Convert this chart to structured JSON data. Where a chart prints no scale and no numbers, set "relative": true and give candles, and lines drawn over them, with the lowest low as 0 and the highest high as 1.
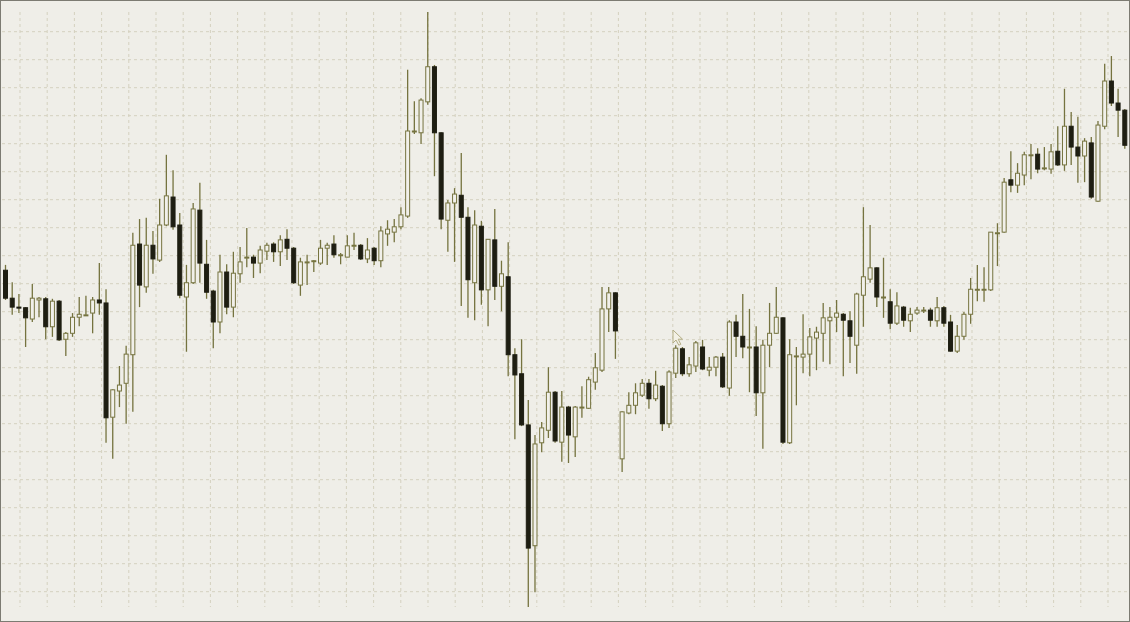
{
  "chart_data": {
    "type": "candlestick",
    "relative": true,
    "grid": true,
    "color": "#75733f",
    "categories": [
      null,
      null,
      null,
      null,
      null,
      null,
      null,
      null,
      null,
      null,
      null,
      null,
      null,
      null,
      null,
      null,
      null,
      null,
      null,
      null,
      null,
      null,
      null,
      null,
      null,
      null,
      null,
      null,
      null,
      null,
      null,
      null,
      null,
      null,
      null,
      null,
      null,
      null,
      null,
      null,
      null,
      null,
      null,
      null,
      null,
      null,
      null,
      null,
      null,
      null,
      null,
      null,
      null,
      null,
      null,
      null,
      null,
      null,
      null,
      null,
      null,
      null,
      null,
      null,
      null,
      null,
      null,
      null,
      null,
      null,
      null,
      null,
      null,
      null,
      null,
      null,
      null,
      null,
      null,
      null,
      null,
      null,
      null,
      null,
      null,
      null,
      null,
      null,
      null,
      null,
      null,
      null,
      null,
      null,
      null,
      null,
      null,
      null,
      null,
      null,
      null,
      null,
      null,
      null,
      null,
      null,
      null,
      null,
      null,
      null,
      null,
      null,
      null,
      null,
      null,
      null,
      null,
      null,
      null,
      null,
      null,
      null,
      null,
      null,
      null,
      null,
      null,
      null,
      null,
      null,
      null,
      null,
      null,
      null,
      null,
      null,
      null,
      null,
      null,
      null,
      null,
      null,
      null,
      null,
      null,
      null,
      null,
      null,
      null,
      null,
      null,
      null,
      null,
      null,
      null,
      null,
      null,
      null,
      null,
      null,
      null,
      null,
      null,
      null,
      null,
      null,
      null,
      null
    ],
    "ohlc": [
      [
        0.566,
        0.575,
        0.516,
        0.519
      ],
      [
        0.519,
        0.546,
        0.491,
        0.504
      ],
      [
        0.504,
        0.526,
        0.494,
        0.503
      ],
      [
        0.503,
        0.504,
        0.437,
        0.486
      ],
      [
        0.484,
        0.543,
        0.479,
        0.519
      ],
      [
        0.516,
        0.521,
        0.487,
        0.519
      ],
      [
        0.518,
        0.521,
        0.45,
        0.471
      ],
      [
        0.471,
        0.518,
        0.454,
        0.514
      ],
      [
        0.514,
        0.516,
        0.447,
        0.449
      ],
      [
        0.45,
        0.462,
        0.422,
        0.46
      ],
      [
        0.46,
        0.494,
        0.454,
        0.487
      ],
      [
        0.487,
        0.521,
        0.472,
        0.492
      ],
      [
        0.491,
        0.523,
        0.489,
        0.491
      ],
      [
        0.494,
        0.521,
        0.46,
        0.516
      ],
      [
        0.516,
        0.578,
        0.491,
        0.511
      ],
      [
        0.511,
        0.534,
        0.276,
        0.318
      ],
      [
        0.319,
        0.366,
        0.249,
        0.365
      ],
      [
        0.363,
        0.405,
        0.336,
        0.373
      ],
      [
        0.376,
        0.439,
        0.308,
        0.425
      ],
      [
        0.424,
        0.629,
        0.328,
        0.608
      ],
      [
        0.61,
        0.652,
        0.504,
        0.541
      ],
      [
        0.538,
        0.654,
        0.528,
        0.608
      ],
      [
        0.608,
        0.632,
        0.56,
        0.585
      ],
      [
        0.583,
        0.686,
        0.58,
        0.642
      ],
      [
        0.642,
        0.76,
        0.64,
        0.691
      ],
      [
        0.689,
        0.734,
        0.634,
        0.639
      ],
      [
        0.642,
        0.662,
        0.519,
        0.524
      ],
      [
        0.521,
        0.575,
        0.429,
        0.545
      ],
      [
        0.545,
        0.679,
        0.543,
        0.669
      ],
      [
        0.667,
        0.713,
        0.545,
        0.578
      ],
      [
        0.576,
        0.617,
        0.518,
        0.529
      ],
      [
        0.531,
        0.533,
        0.435,
        0.479
      ],
      [
        0.479,
        0.592,
        0.46,
        0.563
      ],
      [
        0.563,
        0.576,
        0.492,
        0.504
      ],
      [
        0.504,
        0.597,
        0.487,
        0.561
      ],
      [
        0.56,
        0.605,
        0.545,
        0.58
      ],
      [
        0.588,
        0.637,
        0.571,
        0.588
      ],
      [
        0.588,
        0.592,
        0.553,
        0.578
      ],
      [
        0.578,
        0.607,
        0.561,
        0.6
      ],
      [
        0.598,
        0.612,
        0.583,
        0.608
      ],
      [
        0.61,
        0.613,
        0.58,
        0.597
      ],
      [
        0.597,
        0.625,
        0.573,
        0.617
      ],
      [
        0.618,
        0.635,
        0.583,
        0.603
      ],
      [
        0.603,
        0.605,
        0.543,
        0.545
      ],
      [
        0.541,
        0.587,
        0.523,
        0.58
      ],
      [
        0.58,
        0.592,
        0.541,
        0.58
      ],
      [
        0.582,
        0.583,
        0.563,
        0.582
      ],
      [
        0.578,
        0.617,
        0.575,
        0.603
      ],
      [
        0.603,
        0.612,
        0.575,
        0.608
      ],
      [
        0.61,
        0.625,
        0.587,
        0.592
      ],
      [
        0.592,
        0.595,
        0.576,
        0.592
      ],
      [
        0.588,
        0.625,
        0.588,
        0.607
      ],
      [
        0.608,
        0.629,
        0.6,
        0.608
      ],
      [
        0.608,
        0.61,
        0.583,
        0.585
      ],
      [
        0.585,
        0.62,
        0.578,
        0.6
      ],
      [
        0.603,
        0.605,
        0.575,
        0.582
      ],
      [
        0.582,
        0.64,
        0.571,
        0.632
      ],
      [
        0.627,
        0.65,
        0.607,
        0.635
      ],
      [
        0.63,
        0.652,
        0.613,
        0.639
      ],
      [
        0.639,
        0.672,
        0.635,
        0.659
      ],
      [
        0.657,
        0.903,
        0.654,
        0.8
      ],
      [
        0.8,
        0.85,
        0.795,
        0.8
      ],
      [
        0.797,
        0.855,
        0.778,
        0.852
      ],
      [
        0.849,
        1,
        0.844,
        0.908
      ],
      [
        0.908,
        0.911,
        0.724,
        0.797
      ],
      [
        0.797,
        0.798,
        0.635,
        0.652
      ],
      [
        0.65,
        0.684,
        0.597,
        0.679
      ],
      [
        0.679,
        0.704,
        0.58,
        0.694
      ],
      [
        0.692,
        0.763,
        0.506,
        0.655
      ],
      [
        0.655,
        0.672,
        0.486,
        0.55
      ],
      [
        0.545,
        0.667,
        0.482,
        0.642
      ],
      [
        0.64,
        0.649,
        0.508,
        0.533
      ],
      [
        0.533,
        0.618,
        0.472,
        0.618
      ],
      [
        0.617,
        0.669,
        0.516,
        0.539
      ],
      [
        0.539,
        0.582,
        0.497,
        0.56
      ],
      [
        0.555,
        0.613,
        0.388,
        0.424
      ],
      [
        0.424,
        0.435,
        0.282,
        0.39
      ],
      [
        0.392,
        0.45,
        0.304,
        0.306
      ],
      [
        0.306,
        0.348,
        0,
        0.099
      ],
      [
        0.103,
        0.289,
        0.025,
        0.274
      ],
      [
        0.276,
        0.311,
        0.26,
        0.301
      ],
      [
        0.297,
        0.403,
        0.284,
        0.361
      ],
      [
        0.361,
        0.363,
        0.276,
        0.279
      ],
      [
        0.277,
        0.363,
        0.244,
        0.336
      ],
      [
        0.336,
        0.338,
        0.242,
        0.289
      ],
      [
        0.286,
        0.338,
        0.252,
        0.336
      ],
      [
        0.336,
        0.371,
        0.318,
        0.336
      ],
      [
        0.334,
        0.387,
        0.333,
        0.382
      ],
      [
        0.378,
        0.427,
        0.365,
        0.402
      ],
      [
        0.398,
        0.538,
        0.395,
        0.501
      ],
      [
        0.501,
        0.538,
        0.462,
        0.528
      ],
      [
        0.528,
        0.529,
        0.417,
        0.464
      ],
      [
        0.249,
        0.329,
        0.227,
        0.328
      ],
      [
        0.326,
        0.361,
        0.324,
        0.339
      ],
      [
        0.339,
        0.376,
        0.324,
        0.36
      ],
      [
        0.356,
        0.383,
        0.353,
        0.376
      ],
      [
        0.376,
        0.383,
        0.333,
        0.35
      ],
      [
        0.35,
        0.397,
        0.346,
        0.373
      ],
      [
        0.371,
        0.373,
        0.296,
        0.308
      ],
      [
        0.308,
        0.398,
        0.301,
        0.395
      ],
      [
        0.393,
        0.44,
        0.385,
        0.435
      ],
      [
        0.434,
        0.437,
        0.388,
        0.392
      ],
      [
        0.392,
        0.42,
        0.387,
        0.407
      ],
      [
        0.405,
        0.447,
        0.395,
        0.444
      ],
      [
        0.437,
        0.449,
        0.398,
        0.4
      ],
      [
        0.398,
        0.42,
        0.388,
        0.403
      ],
      [
        0.403,
        0.422,
        0.388,
        0.42
      ],
      [
        0.42,
        0.427,
        0.368,
        0.37
      ],
      [
        0.368,
        0.482,
        0.355,
        0.479
      ],
      [
        0.479,
        0.491,
        0.42,
        0.455
      ],
      [
        0.455,
        0.526,
        0.418,
        0.437
      ],
      [
        0.437,
        0.501,
        0.361,
        0.437
      ],
      [
        0.437,
        0.472,
        0.321,
        0.36
      ],
      [
        0.36,
        0.449,
        0.266,
        0.44
      ],
      [
        0.44,
        0.511,
        0.403,
        0.46
      ],
      [
        0.46,
        0.538,
        0.459,
        0.487
      ],
      [
        0.486,
        0.487,
        0.274,
        0.277
      ],
      [
        0.276,
        0.45,
        0.274,
        0.424
      ],
      [
        0.422,
        0.437,
        0.339,
        0.422
      ],
      [
        0.42,
        0.492,
        0.393,
        0.425
      ],
      [
        0.425,
        0.469,
        0.388,
        0.454
      ],
      [
        0.452,
        0.471,
        0.398,
        0.462
      ],
      [
        0.46,
        0.511,
        0.412,
        0.486
      ],
      [
        0.481,
        0.504,
        0.408,
        0.487
      ],
      [
        0.487,
        0.516,
        0.462,
        0.494
      ],
      [
        0.492,
        0.494,
        0.388,
        0.482
      ],
      [
        0.481,
        0.497,
        0.41,
        0.455
      ],
      [
        0.44,
        0.528,
        0.392,
        0.526
      ],
      [
        0.524,
        0.672,
        0.471,
        0.555
      ],
      [
        0.551,
        0.642,
        0.545,
        0.57
      ],
      [
        0.57,
        0.571,
        0.504,
        0.521
      ],
      [
        0.521,
        0.587,
        0.486,
        0.521
      ],
      [
        0.513,
        0.534,
        0.467,
        0.477
      ],
      [
        0.477,
        0.529,
        0.474,
        0.506
      ],
      [
        0.504,
        0.506,
        0.471,
        0.482
      ],
      [
        0.481,
        0.503,
        0.462,
        0.492
      ],
      [
        0.494,
        0.504,
        0.491,
        0.499
      ],
      [
        0.499,
        0.504,
        0.494,
        0.499
      ],
      [
        0.499,
        0.503,
        0.471,
        0.482
      ],
      [
        0.481,
        0.521,
        0.471,
        0.503
      ],
      [
        0.503,
        0.506,
        0.471,
        0.477
      ],
      [
        0.479,
        0.491,
        0.429,
        0.43
      ],
      [
        0.43,
        0.474,
        0.427,
        0.455
      ],
      [
        0.455,
        0.496,
        0.449,
        0.492
      ],
      [
        0.492,
        0.553,
        0.476,
        0.534
      ],
      [
        0.534,
        0.575,
        0.514,
        0.534
      ],
      [
        0.533,
        0.571,
        0.513,
        0.534
      ],
      [
        0.533,
        0.63,
        0.531,
        0.63
      ],
      [
        0.629,
        0.645,
        0.573,
        0.629
      ],
      [
        0.63,
        0.721,
        0.629,
        0.714
      ],
      [
        0.718,
        0.766,
        0.697,
        0.709
      ],
      [
        0.709,
        0.746,
        0.696,
        0.729
      ],
      [
        0.726,
        0.765,
        0.709,
        0.76
      ],
      [
        0.76,
        0.778,
        0.719,
        0.76
      ],
      [
        0.761,
        0.771,
        0.729,
        0.736
      ],
      [
        0.738,
        0.773,
        0.734,
        0.738
      ],
      [
        0.736,
        0.778,
        0.728,
        0.765
      ],
      [
        0.766,
        0.808,
        0.741,
        0.743
      ],
      [
        0.743,
        0.871,
        0.733,
        0.808
      ],
      [
        0.808,
        0.832,
        0.743,
        0.773
      ],
      [
        0.773,
        0.824,
        0.713,
        0.758
      ],
      [
        0.758,
        0.788,
        0.714,
        0.783
      ],
      [
        0.78,
        0.79,
        0.686,
        0.689
      ],
      [
        0.682,
        0.817,
        0.681,
        0.81
      ],
      [
        0.808,
        0.913,
        0.803,
        0.884
      ],
      [
        0.884,
        0.926,
        0.842,
        0.847
      ],
      [
        0.847,
        0.871,
        0.79,
        0.835
      ],
      [
        0.835,
        0.837,
        0.77,
        0.776
      ]
    ],
    "colors": [
      "#1e1e12",
      "#1e1e12",
      "#1e1e12",
      "#1e1e12",
      "#f1f0ea",
      "#f1f0ea",
      "#1e1e12",
      "#f1f0ea",
      "#1e1e12",
      "#f1f0ea",
      "#f1f0ea",
      "#f1f0ea",
      "#f1f0ea",
      "#f1f0ea",
      "#1e1e12",
      "#1e1e12",
      "#f1f0ea",
      "#f1f0ea",
      "#f1f0ea",
      "#f1f0ea",
      "#1e1e12",
      "#f1f0ea",
      "#1e1e12",
      "#f1f0ea",
      "#f1f0ea",
      "#1e1e12",
      "#1e1e12",
      "#f1f0ea",
      "#f1f0ea",
      "#1e1e12",
      "#1e1e12",
      "#1e1e12",
      "#f1f0ea",
      "#1e1e12",
      "#f1f0ea",
      "#f1f0ea",
      "#f1f0ea",
      "#1e1e12",
      "#f1f0ea",
      "#f1f0ea",
      "#1e1e12",
      "#f1f0ea",
      "#1e1e12",
      "#1e1e12",
      "#f1f0ea",
      "#f1f0ea",
      "#f1f0ea",
      "#f1f0ea",
      "#f1f0ea",
      "#1e1e12",
      "#f1f0ea",
      "#f1f0ea",
      "#f1f0ea",
      "#1e1e12",
      "#f1f0ea",
      "#1e1e12",
      "#f1f0ea",
      "#f1f0ea",
      "#f1f0ea",
      "#f1f0ea",
      "#f1f0ea",
      "#f1f0ea",
      "#f1f0ea",
      "#f1f0ea",
      "#1e1e12",
      "#1e1e12",
      "#f1f0ea",
      "#f1f0ea",
      "#1e1e12",
      "#1e1e12",
      "#f1f0ea",
      "#1e1e12",
      "#f1f0ea",
      "#1e1e12",
      "#f1f0ea",
      "#1e1e12",
      "#1e1e12",
      "#1e1e12",
      "#1e1e12",
      "#f1f0ea",
      "#f1f0ea",
      "#f1f0ea",
      "#1e1e12",
      "#f1f0ea",
      "#1e1e12",
      "#f1f0ea",
      "#f1f0ea",
      "#f1f0ea",
      "#f1f0ea",
      "#f1f0ea",
      "#f1f0ea",
      "#1e1e12",
      "#f1f0ea",
      "#f1f0ea",
      "#f1f0ea",
      "#f1f0ea",
      "#1e1e12",
      "#f1f0ea",
      "#1e1e12",
      "#f1f0ea",
      "#f1f0ea",
      "#1e1e12",
      "#f1f0ea",
      "#f1f0ea",
      "#1e1e12",
      "#f1f0ea",
      "#f1f0ea",
      "#1e1e12",
      "#f1f0ea",
      "#1e1e12",
      "#1e1e12",
      "#f1f0ea",
      "#1e1e12",
      "#f1f0ea",
      "#f1f0ea",
      "#f1f0ea",
      "#1e1e12",
      "#f1f0ea",
      "#f1f0ea",
      "#f1f0ea",
      "#f1f0ea",
      "#f1f0ea",
      "#f1f0ea",
      "#f1f0ea",
      "#f1f0ea",
      "#1e1e12",
      "#1e1e12",
      "#f1f0ea",
      "#f1f0ea",
      "#f1f0ea",
      "#1e1e12",
      "#f1f0ea",
      "#1e1e12",
      "#f1f0ea",
      "#1e1e12",
      "#f1f0ea",
      "#f1f0ea",
      "#f1f0ea",
      "#1e1e12",
      "#f1f0ea",
      "#1e1e12",
      "#1e1e12",
      "#f1f0ea",
      "#f1f0ea",
      "#f1f0ea",
      "#f1f0ea",
      "#f1f0ea",
      "#f1f0ea",
      "#f1f0ea",
      "#f1f0ea",
      "#1e1e12",
      "#f1f0ea",
      "#f1f0ea",
      "#f1f0ea",
      "#1e1e12",
      "#f1f0ea",
      "#f1f0ea",
      "#1e1e12",
      "#f1f0ea",
      "#1e1e12",
      "#1e1e12",
      "#f1f0ea",
      "#1e1e12",
      "#f1f0ea",
      "#f1f0ea",
      "#1e1e12",
      "#1e1e12",
      "#1e1e12"
    ]
  }
}
